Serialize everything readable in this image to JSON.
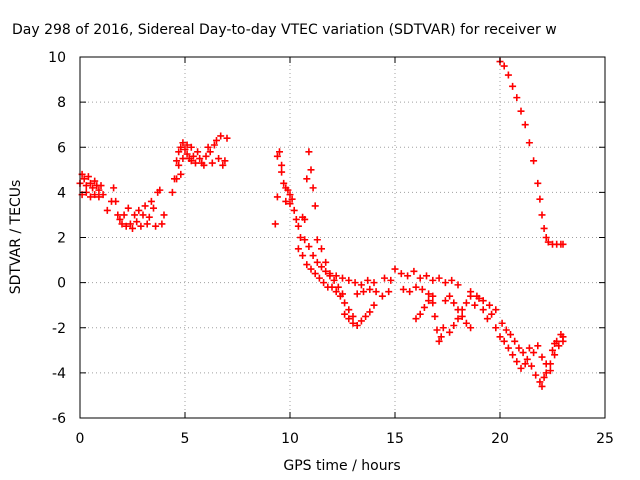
{
  "chart_data": {
    "type": "scatter",
    "title": "Day 298 of 2016, Sidereal Day-to-day VTEC variation (SDTVAR) for receiver w",
    "xlabel": "GPS time / hours",
    "ylabel": "SDTVAR / TECUs",
    "xlim": [
      0,
      25
    ],
    "ylim": [
      -6,
      10
    ],
    "xticks": [
      0,
      5,
      10,
      15,
      20,
      25
    ],
    "yticks": [
      -6,
      -4,
      -2,
      0,
      2,
      4,
      6,
      8,
      10
    ],
    "grid": true,
    "legend": "none",
    "marker": "plus",
    "series_color": "#ff0000",
    "series": [
      {
        "values": [
          [
            0.0,
            4.4
          ],
          [
            0.1,
            4.8
          ],
          [
            0.2,
            4.6
          ],
          [
            0.3,
            4.3
          ],
          [
            0.4,
            4.7
          ],
          [
            0.5,
            4.4
          ],
          [
            0.6,
            4.2
          ],
          [
            0.7,
            4.5
          ],
          [
            0.8,
            4.3
          ],
          [
            0.9,
            4.1
          ],
          [
            1.0,
            4.3
          ],
          [
            0.1,
            3.9
          ],
          [
            0.3,
            4.0
          ],
          [
            0.5,
            3.8
          ],
          [
            0.7,
            3.9
          ],
          [
            0.9,
            3.8
          ],
          [
            1.1,
            3.9
          ],
          [
            1.3,
            3.2
          ],
          [
            1.5,
            3.6
          ],
          [
            1.6,
            4.2
          ],
          [
            1.7,
            3.6
          ],
          [
            1.8,
            3.0
          ],
          [
            1.9,
            2.8
          ],
          [
            2.0,
            2.6
          ],
          [
            2.1,
            3.0
          ],
          [
            2.2,
            2.5
          ],
          [
            2.3,
            3.3
          ],
          [
            2.4,
            2.6
          ],
          [
            2.5,
            2.4
          ],
          [
            2.6,
            3.0
          ],
          [
            2.7,
            2.7
          ],
          [
            2.8,
            3.2
          ],
          [
            2.9,
            2.5
          ],
          [
            3.0,
            3.0
          ],
          [
            3.1,
            3.4
          ],
          [
            3.2,
            2.6
          ],
          [
            3.3,
            2.9
          ],
          [
            3.4,
            3.6
          ],
          [
            3.5,
            3.3
          ],
          [
            3.6,
            2.5
          ],
          [
            3.7,
            4.0
          ],
          [
            3.8,
            4.1
          ],
          [
            3.9,
            2.6
          ],
          [
            4.0,
            3.0
          ],
          [
            4.4,
            4.0
          ],
          [
            4.5,
            4.6
          ],
          [
            4.6,
            5.4
          ],
          [
            4.7,
            5.8
          ],
          [
            4.8,
            6.0
          ],
          [
            4.9,
            6.2
          ],
          [
            5.0,
            5.9
          ],
          [
            5.1,
            6.1
          ],
          [
            5.2,
            5.5
          ],
          [
            5.3,
            6.0
          ],
          [
            5.4,
            5.6
          ],
          [
            5.5,
            5.3
          ],
          [
            5.6,
            5.8
          ],
          [
            5.7,
            5.5
          ],
          [
            5.8,
            5.3
          ],
          [
            5.9,
            5.2
          ],
          [
            4.7,
            5.2
          ],
          [
            4.9,
            5.5
          ],
          [
            5.1,
            5.7
          ],
          [
            5.3,
            5.4
          ],
          [
            4.6,
            4.6
          ],
          [
            4.8,
            4.8
          ],
          [
            6.0,
            5.6
          ],
          [
            6.1,
            6.0
          ],
          [
            6.2,
            5.8
          ],
          [
            6.3,
            5.3
          ],
          [
            6.4,
            6.1
          ],
          [
            6.5,
            6.3
          ],
          [
            6.6,
            5.5
          ],
          [
            6.7,
            6.5
          ],
          [
            6.8,
            5.2
          ],
          [
            6.9,
            5.4
          ],
          [
            7.0,
            6.4
          ],
          [
            9.3,
            2.6
          ],
          [
            9.4,
            3.8
          ],
          [
            9.5,
            5.8
          ],
          [
            9.6,
            5.2
          ],
          [
            9.7,
            4.4
          ],
          [
            9.8,
            3.6
          ],
          [
            9.9,
            4.1
          ],
          [
            10.0,
            3.9
          ],
          [
            9.4,
            5.6
          ],
          [
            9.6,
            4.9
          ],
          [
            9.8,
            4.2
          ],
          [
            10.0,
            3.5
          ],
          [
            10.1,
            3.7
          ],
          [
            10.2,
            3.2
          ],
          [
            10.3,
            2.8
          ],
          [
            10.4,
            2.5
          ],
          [
            10.5,
            2.0
          ],
          [
            10.6,
            2.9
          ],
          [
            10.7,
            2.8
          ],
          [
            10.8,
            4.6
          ],
          [
            10.9,
            5.8
          ],
          [
            11.0,
            5.0
          ],
          [
            11.1,
            4.2
          ],
          [
            11.2,
            3.4
          ],
          [
            10.4,
            1.5
          ],
          [
            10.6,
            1.2
          ],
          [
            10.8,
            0.8
          ],
          [
            11.0,
            0.6
          ],
          [
            11.2,
            0.4
          ],
          [
            11.4,
            0.2
          ],
          [
            11.6,
            0.0
          ],
          [
            11.8,
            -0.2
          ],
          [
            10.7,
            1.9
          ],
          [
            10.9,
            1.6
          ],
          [
            11.1,
            1.2
          ],
          [
            11.3,
            0.9
          ],
          [
            11.5,
            0.7
          ],
          [
            11.7,
            0.5
          ],
          [
            11.9,
            0.3
          ],
          [
            11.3,
            1.9
          ],
          [
            11.5,
            1.5
          ],
          [
            11.7,
            0.9
          ],
          [
            11.9,
            0.4
          ],
          [
            12.1,
            0.1
          ],
          [
            12.3,
            -0.2
          ],
          [
            12.5,
            -0.5
          ],
          [
            12.0,
            -0.2
          ],
          [
            12.2,
            -0.4
          ],
          [
            12.4,
            -0.6
          ],
          [
            12.6,
            -0.9
          ],
          [
            12.8,
            -1.2
          ],
          [
            13.0,
            -1.5
          ],
          [
            12.6,
            -1.4
          ],
          [
            12.8,
            -1.6
          ],
          [
            13.0,
            -1.8
          ],
          [
            13.2,
            -1.9
          ],
          [
            13.4,
            -1.7
          ],
          [
            13.6,
            -1.5
          ],
          [
            13.8,
            -1.3
          ],
          [
            14.0,
            -1.0
          ],
          [
            12.2,
            0.3
          ],
          [
            12.5,
            0.2
          ],
          [
            12.8,
            0.1
          ],
          [
            13.1,
            0.0
          ],
          [
            13.4,
            -0.1
          ],
          [
            13.7,
            0.1
          ],
          [
            14.0,
            0.0
          ],
          [
            13.2,
            -0.5
          ],
          [
            13.5,
            -0.4
          ],
          [
            13.8,
            -0.3
          ],
          [
            14.1,
            -0.4
          ],
          [
            14.4,
            -0.6
          ],
          [
            14.7,
            -0.4
          ],
          [
            14.5,
            0.2
          ],
          [
            14.8,
            0.1
          ],
          [
            15.0,
            0.6
          ],
          [
            15.3,
            0.4
          ],
          [
            15.6,
            0.3
          ],
          [
            15.9,
            0.5
          ],
          [
            16.2,
            0.2
          ],
          [
            16.5,
            0.3
          ],
          [
            15.4,
            -0.3
          ],
          [
            15.7,
            -0.4
          ],
          [
            16.0,
            -0.2
          ],
          [
            16.3,
            -0.3
          ],
          [
            16.6,
            -0.5
          ],
          [
            16.8,
            0.1
          ],
          [
            17.1,
            0.2
          ],
          [
            17.4,
            0.0
          ],
          [
            17.7,
            0.1
          ],
          [
            18.0,
            -0.1
          ],
          [
            16.8,
            -0.9
          ],
          [
            16.9,
            -1.5
          ],
          [
            17.0,
            -2.1
          ],
          [
            17.1,
            -2.6
          ],
          [
            17.2,
            -2.4
          ],
          [
            17.3,
            -2.0
          ],
          [
            16.0,
            -1.6
          ],
          [
            16.2,
            -1.4
          ],
          [
            16.4,
            -1.1
          ],
          [
            16.6,
            -0.8
          ],
          [
            16.8,
            -0.6
          ],
          [
            17.4,
            -0.8
          ],
          [
            17.6,
            -0.6
          ],
          [
            17.8,
            -0.9
          ],
          [
            18.0,
            -1.2
          ],
          [
            18.2,
            -1.5
          ],
          [
            18.4,
            -1.8
          ],
          [
            18.6,
            -2.0
          ],
          [
            17.6,
            -2.2
          ],
          [
            17.8,
            -1.9
          ],
          [
            18.0,
            -1.6
          ],
          [
            18.2,
            -1.2
          ],
          [
            18.4,
            -0.9
          ],
          [
            18.6,
            -0.6
          ],
          [
            18.8,
            -1.0
          ],
          [
            19.0,
            -0.7
          ],
          [
            19.2,
            -1.2
          ],
          [
            19.4,
            -1.6
          ],
          [
            19.6,
            -1.4
          ],
          [
            19.8,
            -2.0
          ],
          [
            20.0,
            -2.4
          ],
          [
            18.6,
            -0.4
          ],
          [
            18.9,
            -0.6
          ],
          [
            19.2,
            -0.8
          ],
          [
            19.5,
            -1.0
          ],
          [
            19.8,
            -1.2
          ],
          [
            20.2,
            -2.6
          ],
          [
            20.4,
            -2.9
          ],
          [
            20.6,
            -3.2
          ],
          [
            20.8,
            -3.5
          ],
          [
            21.0,
            -3.8
          ],
          [
            21.2,
            -3.6
          ],
          [
            20.1,
            -1.8
          ],
          [
            20.3,
            -2.1
          ],
          [
            20.5,
            -2.3
          ],
          [
            20.7,
            -2.6
          ],
          [
            20.9,
            -2.9
          ],
          [
            21.1,
            -3.1
          ],
          [
            21.3,
            -3.4
          ],
          [
            21.5,
            -3.7
          ],
          [
            21.7,
            -4.1
          ],
          [
            21.9,
            -4.4
          ],
          [
            22.0,
            -4.6
          ],
          [
            22.1,
            -4.2
          ],
          [
            21.4,
            -2.9
          ],
          [
            21.6,
            -3.1
          ],
          [
            21.8,
            -2.8
          ],
          [
            22.0,
            -3.3
          ],
          [
            22.2,
            -3.6
          ],
          [
            22.4,
            -3.9
          ],
          [
            22.2,
            -4.0
          ],
          [
            22.4,
            -3.6
          ],
          [
            22.6,
            -3.2
          ],
          [
            22.8,
            -2.8
          ],
          [
            23.0,
            -2.4
          ],
          [
            22.5,
            -3.0
          ],
          [
            22.7,
            -2.6
          ],
          [
            22.9,
            -2.3
          ],
          [
            23.0,
            -2.6
          ],
          [
            22.6,
            -2.7
          ],
          [
            20.0,
            9.8
          ],
          [
            20.2,
            9.6
          ],
          [
            20.4,
            9.2
          ],
          [
            20.6,
            8.7
          ],
          [
            20.8,
            8.2
          ],
          [
            21.0,
            7.6
          ],
          [
            21.2,
            7.0
          ],
          [
            21.4,
            6.2
          ],
          [
            21.6,
            5.4
          ],
          [
            21.8,
            4.4
          ],
          [
            21.9,
            3.7
          ],
          [
            22.0,
            3.0
          ],
          [
            22.1,
            2.4
          ],
          [
            22.2,
            2.0
          ],
          [
            22.3,
            1.8
          ],
          [
            22.5,
            1.7
          ],
          [
            22.7,
            1.7
          ],
          [
            22.9,
            1.7
          ],
          [
            23.0,
            1.7
          ]
        ]
      }
    ]
  }
}
